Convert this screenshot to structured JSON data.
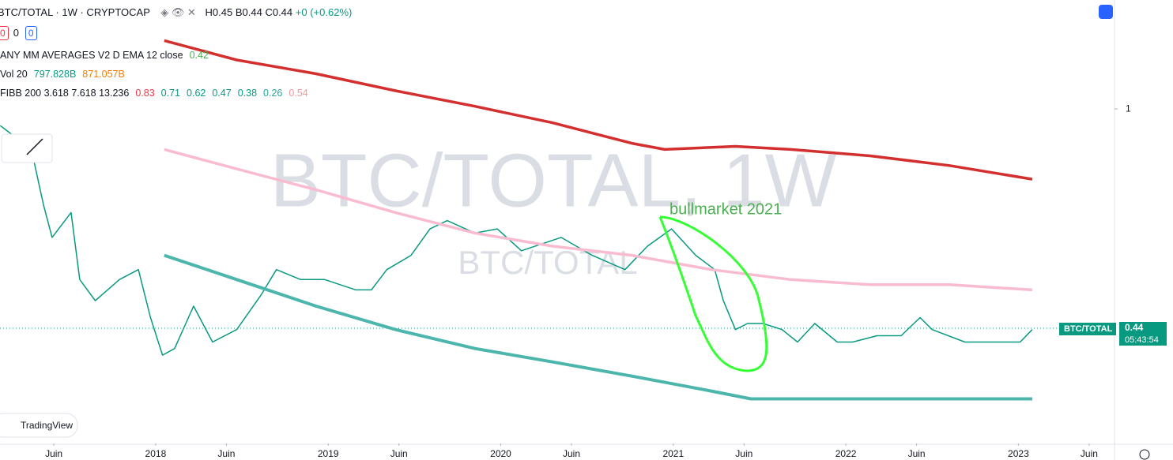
{
  "header": {
    "symbol": "BTC/TOTAL · 1W · CRYPTOCAP",
    "high": "H0.45",
    "low": "B0.44",
    "close": "C0.44",
    "change": "+0 (+0.62%)",
    "buttons": [
      "0",
      "0",
      "0"
    ]
  },
  "indicators": [
    {
      "name": "ANY MM AVERAGES V2 D EMA 12 close",
      "values": [
        "0.42"
      ]
    },
    {
      "name": "Vol 20",
      "values": [
        "797.828B",
        "871.057B"
      ]
    },
    {
      "name": "FIBB 200 3.618 7.618 13.236",
      "values": [
        "0.83",
        "0.71",
        "0.62",
        "0.47",
        "0.38",
        "0.26",
        "0.54"
      ]
    }
  ],
  "watermark": {
    "title": "BTC/TOTAL, 1W",
    "subtitle": "BTC/TOTAL"
  },
  "annotation": "bullmarket 2021",
  "price_label": {
    "symbol": "BTC/TOTAL",
    "price": "0.44",
    "countdown": "05:43:54"
  },
  "logo": "TradingView",
  "chart_data": {
    "type": "line",
    "log_scale": true,
    "xlim": [
      2017.098,
      2023.557
    ],
    "ylim": [
      0.288,
      1.5
    ],
    "xticks": [
      {
        "value": 2017.41,
        "label": "Juin"
      },
      {
        "value": 2018,
        "label": "2018"
      },
      {
        "value": 2018.41,
        "label": "Juin"
      },
      {
        "value": 2019,
        "label": "2019"
      },
      {
        "value": 2019.41,
        "label": "Juin"
      },
      {
        "value": 2020,
        "label": "2020"
      },
      {
        "value": 2020.41,
        "label": "Juin"
      },
      {
        "value": 2021,
        "label": "2021"
      },
      {
        "value": 2021.41,
        "label": "Juin"
      },
      {
        "value": 2022,
        "label": "2022"
      },
      {
        "value": 2022.41,
        "label": "Juin"
      },
      {
        "value": 2023,
        "label": "2023"
      },
      {
        "value": 2023.41,
        "label": "Juin"
      }
    ],
    "yticks": [
      1
    ],
    "series": [
      {
        "name": "BTC/TOTAL",
        "color": "#089981",
        "width": 1.5,
        "x": [
          2017.1,
          2017.28,
          2017.35,
          2017.4,
          2017.51,
          2017.56,
          2017.65,
          2017.79,
          2017.9,
          2017.97,
          2018.04,
          2018.11,
          2018.22,
          2018.33,
          2018.47,
          2018.61,
          2018.7,
          2018.84,
          2018.98,
          2019.16,
          2019.25,
          2019.34,
          2019.48,
          2019.59,
          2019.69,
          2019.85,
          2019.98,
          2020.12,
          2020.35,
          2020.53,
          2020.72,
          2020.85,
          2020.99,
          2021.13,
          2021.24,
          2021.29,
          2021.36,
          2021.43,
          2021.52,
          2021.63,
          2021.72,
          2021.82,
          2021.95,
          2022.04,
          2022.18,
          2022.32,
          2022.43,
          2022.5,
          2022.69,
          2022.87,
          2023.01,
          2023.08
        ],
        "values": [
          0.94,
          0.86,
          0.7,
          0.62,
          0.68,
          0.53,
          0.49,
          0.53,
          0.55,
          0.46,
          0.4,
          0.41,
          0.48,
          0.42,
          0.44,
          0.5,
          0.55,
          0.53,
          0.53,
          0.51,
          0.51,
          0.55,
          0.58,
          0.64,
          0.66,
          0.63,
          0.64,
          0.59,
          0.62,
          0.58,
          0.55,
          0.6,
          0.64,
          0.58,
          0.55,
          0.49,
          0.44,
          0.45,
          0.45,
          0.44,
          0.42,
          0.45,
          0.42,
          0.42,
          0.43,
          0.43,
          0.46,
          0.44,
          0.42,
          0.42,
          0.42,
          0.44
        ]
      },
      {
        "name": "FIBB 200 upper",
        "color": "#d32f2f",
        "width": 3.5,
        "x": [
          2018.05,
          2018.47,
          2018.93,
          2019.39,
          2019.85,
          2020.3,
          2020.76,
          2020.95,
          2021.36,
          2021.68,
          2022.14,
          2022.6,
          2023.08
        ],
        "values": [
          1.29,
          1.2,
          1.14,
          1.07,
          1.01,
          0.95,
          0.88,
          0.86,
          0.87,
          0.86,
          0.84,
          0.81,
          0.77
        ]
      },
      {
        "name": "FIBB 200 basis",
        "color": "#f8bbd0",
        "width": 3.5,
        "x": [
          2018.05,
          2018.47,
          2018.93,
          2019.39,
          2019.85,
          2020.3,
          2020.76,
          2021.22,
          2021.68,
          2022.14,
          2022.6,
          2023.08
        ],
        "values": [
          0.86,
          0.8,
          0.74,
          0.68,
          0.63,
          0.6,
          0.58,
          0.55,
          0.53,
          0.52,
          0.52,
          0.51
        ]
      },
      {
        "name": "FIBB 200 lower",
        "color": "#4db6ac",
        "width": 4,
        "x": [
          2018.05,
          2018.47,
          2018.93,
          2019.39,
          2019.85,
          2020.3,
          2020.76,
          2021.22,
          2021.45,
          2021.68,
          2022.14,
          2023.08
        ],
        "values": [
          0.58,
          0.53,
          0.48,
          0.44,
          0.41,
          0.39,
          0.37,
          0.35,
          0.34,
          0.34,
          0.34,
          0.34
        ]
      }
    ]
  }
}
